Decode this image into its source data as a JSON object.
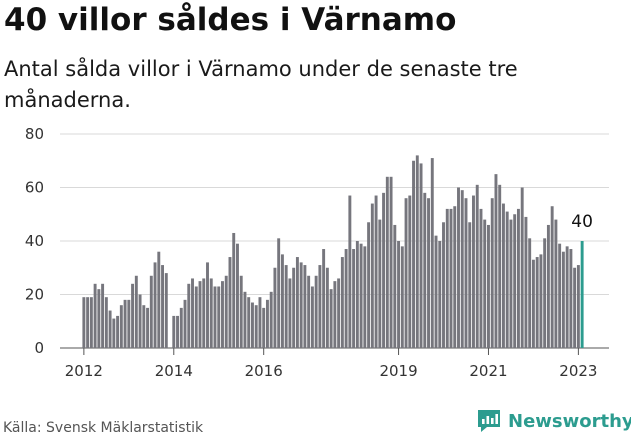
{
  "title": "40 villor såldes i Värnamo",
  "subtitle": "Antal sålda villor i Värnamo under de senaste tre månaderna.",
  "source": "Källa: Svensk Mäklarstatistik",
  "brand": {
    "name": "Newsworthy"
  },
  "colors": {
    "bar": "#76767d",
    "highlight": "#2c9c8f",
    "grid": "#d9d9d9",
    "text": "#333333"
  },
  "chart_data": {
    "type": "bar",
    "title": "40 villor såldes i Värnamo",
    "xlabel": "",
    "ylabel": "",
    "ylim": [
      0,
      80
    ],
    "y_ticks": [
      0,
      20,
      40,
      60,
      80
    ],
    "x_ticks": [
      {
        "label": "2012",
        "year": 2012
      },
      {
        "label": "2014",
        "year": 2014
      },
      {
        "label": "2016",
        "year": 2016
      },
      {
        "label": "2019",
        "year": 2019
      },
      {
        "label": "2021",
        "year": 2021
      },
      {
        "label": "2023",
        "year": 2023
      }
    ],
    "start": {
      "year": 2012,
      "month": 1
    },
    "interval_months": 1,
    "highlight_last": true,
    "last_label": "40",
    "grid": true,
    "values": [
      19,
      19,
      19,
      24,
      22,
      24,
      19,
      14,
      11,
      12,
      16,
      18,
      18,
      24,
      27,
      20,
      16,
      15,
      27,
      32,
      36,
      31,
      28,
      0,
      12,
      12,
      15,
      18,
      24,
      26,
      23,
      25,
      26,
      32,
      26,
      23,
      23,
      25,
      27,
      34,
      43,
      39,
      27,
      21,
      19,
      17,
      16,
      19,
      15,
      18,
      21,
      30,
      41,
      35,
      31,
      26,
      30,
      34,
      32,
      31,
      27,
      23,
      27,
      31,
      37,
      30,
      22,
      25,
      26,
      34,
      37,
      57,
      37,
      40,
      39,
      38,
      47,
      54,
      57,
      48,
      58,
      64,
      64,
      46,
      40,
      38,
      56,
      57,
      70,
      72,
      69,
      58,
      56,
      71,
      42,
      40,
      47,
      52,
      52,
      53,
      60,
      59,
      56,
      47,
      57,
      61,
      52,
      48,
      46,
      56,
      65,
      61,
      54,
      51,
      48,
      50,
      52,
      60,
      49,
      41,
      33,
      34,
      35,
      41,
      46,
      53,
      48,
      39,
      36,
      38,
      37,
      30,
      31,
      40
    ]
  }
}
